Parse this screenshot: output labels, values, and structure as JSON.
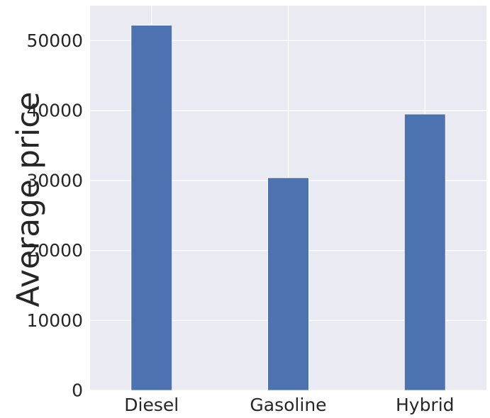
{
  "chart_data": {
    "type": "bar",
    "categories": [
      "Diesel",
      "Gasoline",
      "Hybrid"
    ],
    "values": [
      52200,
      30400,
      39500
    ],
    "xlabel": "",
    "ylabel": "Average price",
    "ylim": [
      0,
      55000
    ],
    "yticks": [
      0,
      10000,
      20000,
      30000,
      40000,
      50000
    ],
    "ytick_labels": [
      "0",
      "10000",
      "20000",
      "30000",
      "40000",
      "50000"
    ],
    "grid": true,
    "legend": "none",
    "colors": {
      "bar": "#4c72b0",
      "background": "#eaeaf2",
      "grid": "#ffffff",
      "text": "#262626"
    }
  }
}
